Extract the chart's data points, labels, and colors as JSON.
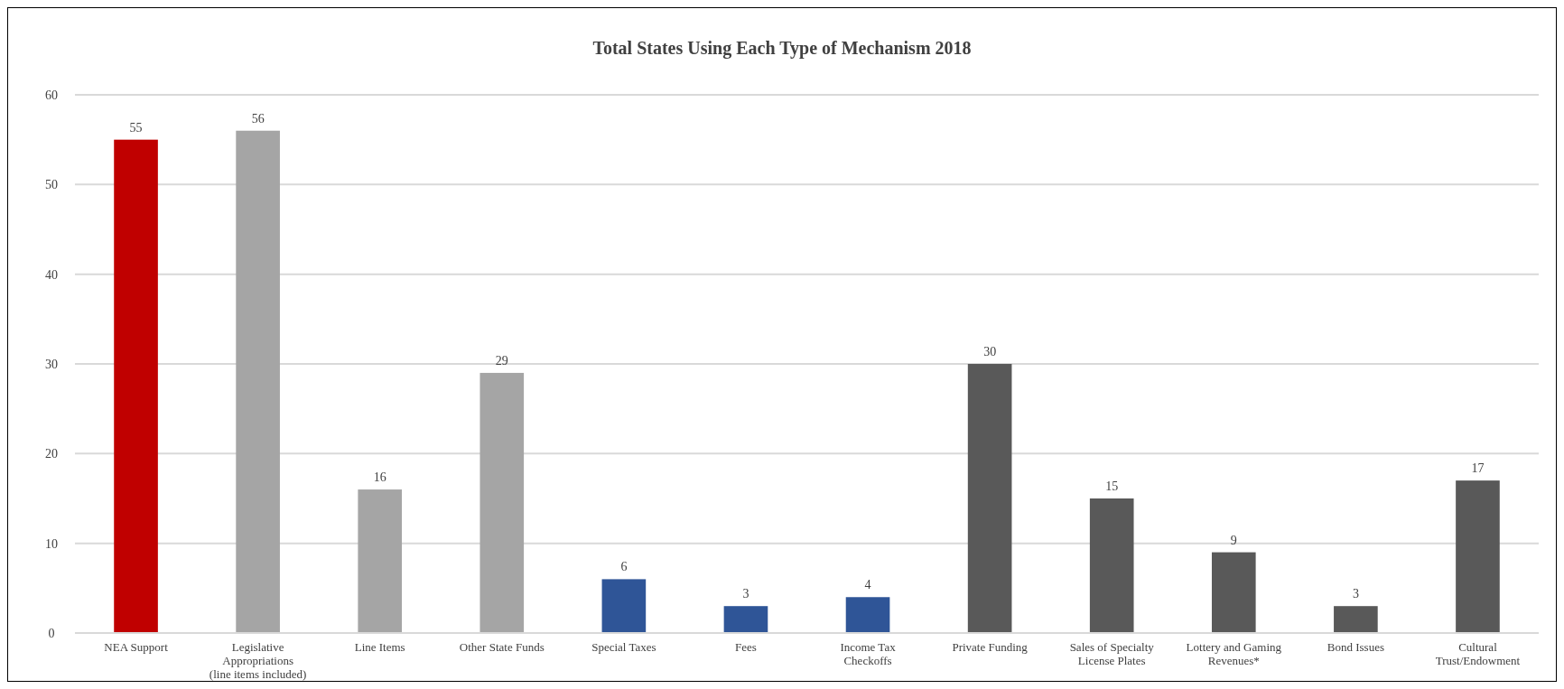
{
  "chart_data": {
    "type": "bar",
    "title": "Total States Using Each Type of Mechanism 2018",
    "categories": [
      "NEA Support",
      "Legislative\nAppropriations\n(line items included)",
      "Line Items",
      "Other State Funds",
      "Special Taxes",
      "Fees",
      "Income Tax\nCheckoffs",
      "Private Funding",
      "Sales of Specialty\nLicense Plates",
      "Lottery and Gaming\nRevenues*",
      "Bond Issues",
      "Cultural\nTrust/Endowment"
    ],
    "values": [
      55,
      56,
      16,
      29,
      6,
      3,
      4,
      30,
      15,
      9,
      3,
      17
    ],
    "colors": [
      "#c00000",
      "#a5a5a5",
      "#a5a5a5",
      "#a5a5a5",
      "#2f5597",
      "#2f5597",
      "#2f5597",
      "#595959",
      "#595959",
      "#595959",
      "#595959",
      "#595959"
    ],
    "ylim": [
      0,
      60
    ],
    "yticks": [
      0,
      10,
      20,
      30,
      40,
      50,
      60
    ],
    "grid": "y",
    "data_labels": true
  }
}
